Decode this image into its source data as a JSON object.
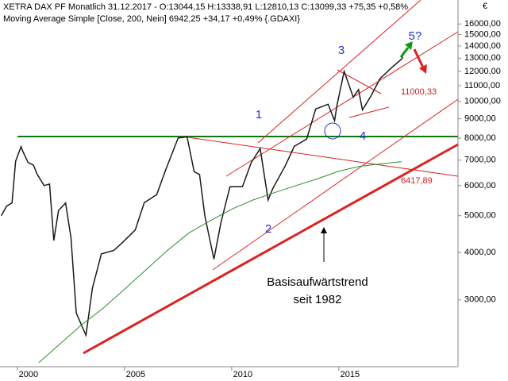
{
  "chart_data": {
    "type": "line",
    "title": "XETRA DAX PF Monatlich  31.12.2017 - O:13044,15 H:13338,91 L:12810,13 C:13099,33 +75,35 +0,58%",
    "subtitle": "Moving Average Simple [Close, 200, Nein] 6942,25 +34,17 +0,49% {.GDAXI}",
    "currency": "€",
    "log_scale": true,
    "grid": false,
    "xlim": [
      1999.19,
      2020.56
    ],
    "xticks": [
      2000,
      2005,
      2010,
      2015
    ],
    "ylim": [
      2000,
      18500
    ],
    "yticks": [
      {
        "value": 16000,
        "label": "16000,00"
      },
      {
        "value": 15000,
        "label": "15000,00"
      },
      {
        "value": 14000,
        "label": "14000,00"
      },
      {
        "value": 13000,
        "label": "13000,00"
      },
      {
        "value": 12000,
        "label": "12000,00"
      },
      {
        "value": 11000,
        "label": "11000,00"
      },
      {
        "value": 10000,
        "label": "10000,00"
      },
      {
        "value": 9000,
        "label": "9000,00"
      },
      {
        "value": 8000,
        "label": "8000,00"
      },
      {
        "value": 7000,
        "label": "7000,00"
      },
      {
        "value": 6000,
        "label": "6000,00"
      },
      {
        "value": 5000,
        "label": "5000,00"
      },
      {
        "value": 4000,
        "label": "4000,00"
      },
      {
        "value": 3000,
        "label": "3000,00"
      }
    ],
    "series": [
      {
        "name": "DAX",
        "color": "#1a1a1a",
        "x": [
          1999.25,
          1999.5,
          1999.75,
          1999.92,
          2000.17,
          2000.25,
          2000.5,
          2000.75,
          2000.92,
          2001.25,
          2001.5,
          2001.7,
          2001.92,
          2002.25,
          2002.5,
          2002.75,
          2003.2,
          2003.5,
          2003.92,
          2004.5,
          2004.92,
          2005.5,
          2005.92,
          2006.5,
          2006.92,
          2007.5,
          2007.92,
          2008.25,
          2008.5,
          2008.75,
          2009.17,
          2009.5,
          2009.92,
          2010.5,
          2010.92,
          2011.33,
          2011.7,
          2011.92,
          2012.5,
          2012.92,
          2013.5,
          2013.92,
          2014.5,
          2014.8,
          2014.92,
          2015.25,
          2015.67,
          2015.92,
          2016.1,
          2016.5,
          2016.92,
          2017.5,
          2017.92,
          2017.99
        ],
        "values": [
          5000,
          5300,
          5400,
          6958,
          7600,
          7400,
          6900,
          6800,
          6434,
          6000,
          6060,
          4300,
          5160,
          5400,
          4380,
          2770,
          2420,
          3220,
          3965,
          4050,
          4256,
          4586,
          5408,
          5680,
          6597,
          8007,
          8067,
          6530,
          6420,
          4990,
          3840,
          4800,
          5957,
          5960,
          6914,
          7510,
          5500,
          5898,
          6770,
          7612,
          7960,
          9552,
          9833,
          8900,
          9806,
          12000,
          10260,
          10743,
          9495,
          10337,
          11481,
          12325,
          12918,
          13099
        ]
      },
      {
        "name": "Moving Average Simple",
        "color": "#2e8b2e",
        "x": [
          2001.0,
          2002.0,
          2003.0,
          2004.0,
          2005.0,
          2006.0,
          2007.0,
          2008.0,
          2009.0,
          2010.0,
          2011.0,
          2012.0,
          2013.0,
          2014.0,
          2015.0,
          2016.0,
          2017.92
        ],
        "values": [
          2050,
          2300,
          2580,
          2850,
          3200,
          3600,
          4050,
          4500,
          4850,
          5200,
          5500,
          5750,
          6000,
          6250,
          6550,
          6750,
          6942
        ]
      }
    ],
    "annotations": [
      "1",
      "2",
      "3",
      "4",
      "5?",
      "11000,33",
      "6417,89",
      "Basisaufwärtstrend",
      "seit 1982"
    ]
  }
}
